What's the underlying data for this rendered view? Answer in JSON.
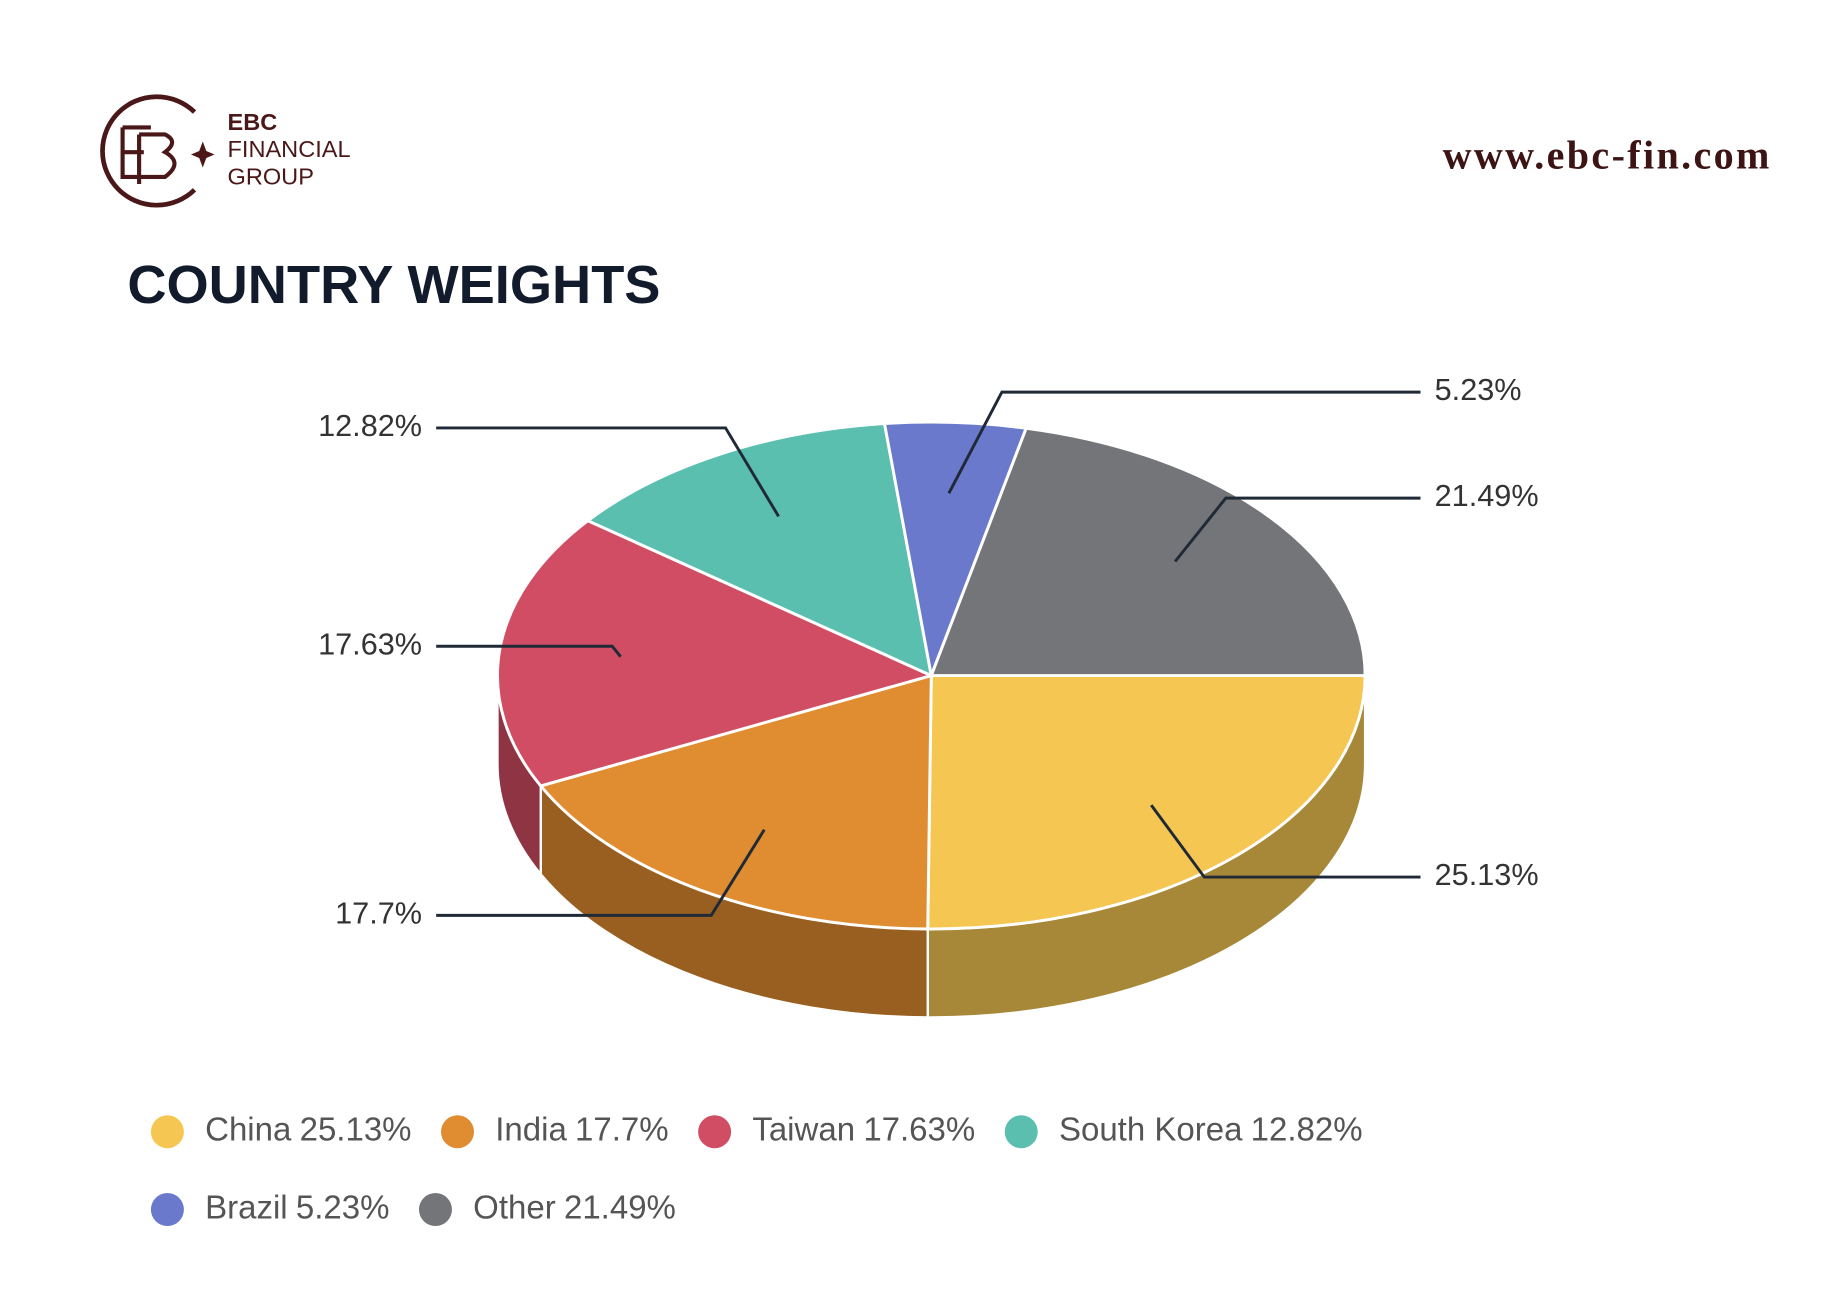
{
  "header": {
    "brand": "EBC",
    "brand_line1": "FINANCIAL",
    "brand_line2": "GROUP",
    "url": "www.ebc-fin.com"
  },
  "chart_data": {
    "type": "pie3d",
    "title": "COUNTRY WEIGHTS",
    "categories": [
      "China",
      "India",
      "Taiwan",
      "South Korea",
      "Brazil",
      "Other"
    ],
    "values": [
      25.13,
      17.7,
      17.63,
      12.82,
      5.23,
      21.49
    ],
    "value_labels": [
      "25.13%",
      "17.7%",
      "17.63%",
      "12.82%",
      "5.23%",
      "21.49%"
    ],
    "colors": [
      "#f5c752",
      "#e08c30",
      "#d14d63",
      "#5bbfb0",
      "#6b79cc",
      "#737578"
    ],
    "legend": "bottom"
  }
}
